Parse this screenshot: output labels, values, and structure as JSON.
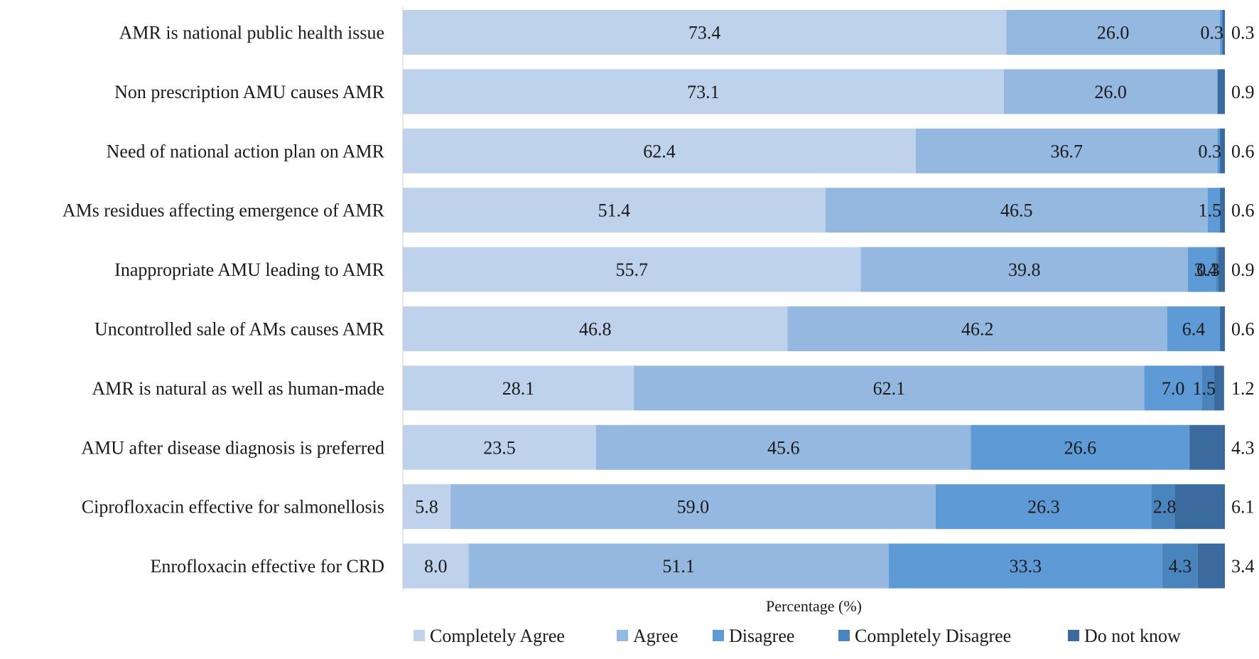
{
  "chart_data": {
    "type": "bar",
    "orientation": "horizontal",
    "stacked": true,
    "title": "",
    "xlabel": "Percentage (%)",
    "ylabel": "",
    "xlim": [
      0,
      100
    ],
    "categories": [
      "AMR is national public health issue",
      "Non prescription AMU causes AMR",
      "Need of national action plan on AMR",
      "AMs residues affecting emergence of AMR",
      "Inappropriate AMU leading to AMR",
      "Uncontrolled sale of AMs causes AMR",
      "AMR is natural as well as human-made",
      "AMU after disease diagnosis is preferred",
      "Ciprofloxacin effective for salmonellosis",
      "Enrofloxacin effective for CRD"
    ],
    "series": [
      {
        "name": "Completely Agree",
        "color": "#bed2eb",
        "values": [
          73.4,
          73.1,
          62.4,
          51.4,
          55.7,
          46.8,
          28.1,
          23.5,
          5.8,
          8.0
        ]
      },
      {
        "name": "Agree",
        "color": "#95b8e0",
        "values": [
          26.0,
          26.0,
          36.7,
          46.5,
          39.8,
          46.2,
          62.1,
          45.6,
          59.0,
          51.1
        ]
      },
      {
        "name": "Disagree",
        "color": "#5e9ad6",
        "values": [
          0.3,
          0.0,
          0.3,
          1.5,
          3.4,
          6.4,
          7.0,
          26.6,
          26.3,
          33.3
        ]
      },
      {
        "name": "Completely Disagree",
        "color": "#4a84bd",
        "values": [
          0.0,
          0.0,
          0.0,
          0.0,
          0.3,
          0.0,
          1.5,
          0.0,
          2.8,
          4.3
        ]
      },
      {
        "name": "Do not know",
        "color": "#3b6b9e",
        "values": [
          0.3,
          0.9,
          0.6,
          0.6,
          0.9,
          0.6,
          1.2,
          4.3,
          6.1,
          3.4
        ]
      }
    ],
    "data_labels": [
      [
        "73.4",
        "26.0",
        "0.3",
        "",
        "0.3"
      ],
      [
        "73.1",
        "26.0",
        "",
        "",
        "0.9"
      ],
      [
        "62.4",
        "36.7",
        "0.3",
        "",
        "0.6"
      ],
      [
        "51.4",
        "46.5",
        "1.5",
        "",
        "0.6"
      ],
      [
        "55.7",
        "39.8",
        "3.4",
        "0.3",
        "0.9"
      ],
      [
        "46.8",
        "46.2",
        "6.4",
        "",
        "0.6"
      ],
      [
        "28.1",
        "62.1",
        "7.0",
        "1.5",
        "1.2"
      ],
      [
        "23.5",
        "45.6",
        "26.6",
        "",
        "4.3"
      ],
      [
        "5.8",
        "59.0",
        "26.3",
        "2.8",
        "6.1"
      ],
      [
        "8.0",
        "51.1",
        "33.3",
        "4.3",
        "3.4"
      ]
    ],
    "legend": {
      "position": "bottom"
    },
    "grid": false
  }
}
